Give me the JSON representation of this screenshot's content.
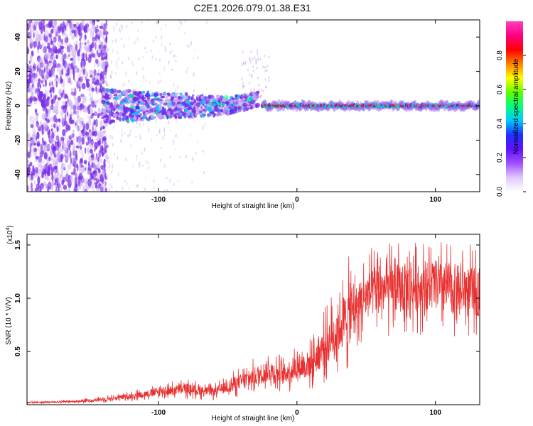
{
  "page": {
    "title": "C2E1.2026.079.01.38.E31"
  },
  "colors": {
    "snr_line": "#e83030",
    "scatter_purple": "#7a2ee8",
    "scatter_light": "#c8a8f0",
    "axis": "#000000"
  },
  "colorbar": {
    "label": "Normalized spectral amplitude",
    "ticks": [
      "0.0",
      "0.2",
      "0.4",
      "0.6",
      "0.8"
    ],
    "tick_values": [
      0.0,
      0.2,
      0.4,
      0.6,
      0.8
    ],
    "range": [
      0,
      1
    ],
    "colors": [
      "#ffffff",
      "#e0c8ff",
      "#a050ff",
      "#6010ff",
      "#2030ff",
      "#00c8ff",
      "#00ff80",
      "#60ff00",
      "#ffff00",
      "#ff8000",
      "#ff0000",
      "#ff0080",
      "#ff40c0"
    ]
  },
  "chart_data": [
    {
      "type": "heatmap",
      "title": "C2E1.2026.079.01.38.E31",
      "xlabel": "Height of straight line (km)",
      "ylabel": "Frequency (Hz)",
      "xlim": [
        -195,
        132
      ],
      "ylim": [
        -50,
        50
      ],
      "xticks": [
        -100,
        0,
        100
      ],
      "xtick_labels": [
        "-100",
        "0",
        "100"
      ],
      "yticks": [
        -40,
        -20,
        0,
        20,
        40
      ],
      "ytick_labels": [
        "-40",
        "-20",
        "0",
        "20",
        "40"
      ],
      "description_series": {
        "noise_region_x": [
          -195,
          -140
        ],
        "spread_region_x": [
          -140,
          -30
        ],
        "signal_band_x": [
          -25,
          132
        ],
        "signal_band_freq": 0
      }
    },
    {
      "type": "line",
      "xlabel": "Height of straight line (km)",
      "ylabel": "SNR (10 * V/V)",
      "scale_label": "(x10",
      "scale_exp": "4",
      "xlim": [
        -195,
        132
      ],
      "ylim": [
        0,
        1.6
      ],
      "xticks": [
        -100,
        0,
        100
      ],
      "xtick_labels": [
        "-100",
        "0",
        "100"
      ],
      "yticks": [
        0.5,
        1.0,
        1.5
      ],
      "ytick_labels": [
        "0.5",
        "1.0",
        "1.5"
      ],
      "envelope": {
        "x": [
          -195,
          -160,
          -140,
          -120,
          -100,
          -80,
          -60,
          -40,
          -20,
          -10,
          0,
          10,
          20,
          30,
          40,
          50,
          60,
          80,
          100,
          120,
          132
        ],
        "y": [
          0.02,
          0.03,
          0.05,
          0.08,
          0.12,
          0.15,
          0.12,
          0.22,
          0.32,
          0.28,
          0.36,
          0.38,
          0.55,
          0.72,
          0.88,
          1.02,
          1.08,
          1.1,
          1.12,
          1.08,
          1.05
        ]
      }
    }
  ]
}
